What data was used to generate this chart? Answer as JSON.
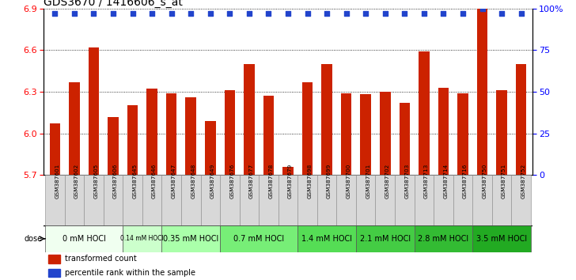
{
  "title": "GDS3670 / 1416606_s_at",
  "samples": [
    "GSM387601",
    "GSM387602",
    "GSM387605",
    "GSM387606",
    "GSM387645",
    "GSM387646",
    "GSM387647",
    "GSM387648",
    "GSM387649",
    "GSM387676",
    "GSM387677",
    "GSM387678",
    "GSM387679",
    "GSM387698",
    "GSM387699",
    "GSM387700",
    "GSM387701",
    "GSM387702",
    "GSM387703",
    "GSM387713",
    "GSM387714",
    "GSM387716",
    "GSM387750",
    "GSM387751",
    "GSM387752"
  ],
  "bar_values": [
    6.07,
    6.37,
    6.62,
    6.12,
    6.2,
    6.32,
    6.29,
    6.26,
    6.09,
    6.31,
    6.5,
    6.27,
    5.76,
    6.37,
    6.5,
    6.29,
    6.28,
    6.3,
    6.22,
    6.59,
    6.33,
    6.29,
    6.9,
    6.31,
    6.5
  ],
  "percentile_values": [
    97,
    97,
    97,
    97,
    97,
    97,
    97,
    97,
    97,
    97,
    97,
    97,
    97,
    97,
    97,
    97,
    97,
    97,
    97,
    97,
    97,
    97,
    100,
    97,
    97
  ],
  "dose_groups": [
    {
      "label": "0 mM HOCl",
      "start": 0,
      "end": 4,
      "color": "#f0fff0"
    },
    {
      "label": "0.14 mM HOCl",
      "start": 4,
      "end": 6,
      "color": "#ccffcc"
    },
    {
      "label": "0.35 mM HOCl",
      "start": 6,
      "end": 9,
      "color": "#aaffaa"
    },
    {
      "label": "0.7 mM HOCl",
      "start": 9,
      "end": 13,
      "color": "#77ee77"
    },
    {
      "label": "1.4 mM HOCl",
      "start": 13,
      "end": 16,
      "color": "#55dd55"
    },
    {
      "label": "2.1 mM HOCl",
      "start": 16,
      "end": 19,
      "color": "#44cc44"
    },
    {
      "label": "2.8 mM HOCl",
      "start": 19,
      "end": 22,
      "color": "#33bb33"
    },
    {
      "label": "3.5 mM HOCl",
      "start": 22,
      "end": 25,
      "color": "#22aa22"
    }
  ],
  "bar_color": "#cc2200",
  "percentile_color": "#2244cc",
  "ylim_left": [
    5.7,
    6.9
  ],
  "ylim_right": [
    0,
    100
  ],
  "yticks_left": [
    5.7,
    6.0,
    6.3,
    6.6,
    6.9
  ],
  "yticks_right": [
    0,
    25,
    50,
    75,
    100
  ],
  "bg_color": "#ffffff",
  "title_fontsize": 10,
  "bar_width": 0.55
}
